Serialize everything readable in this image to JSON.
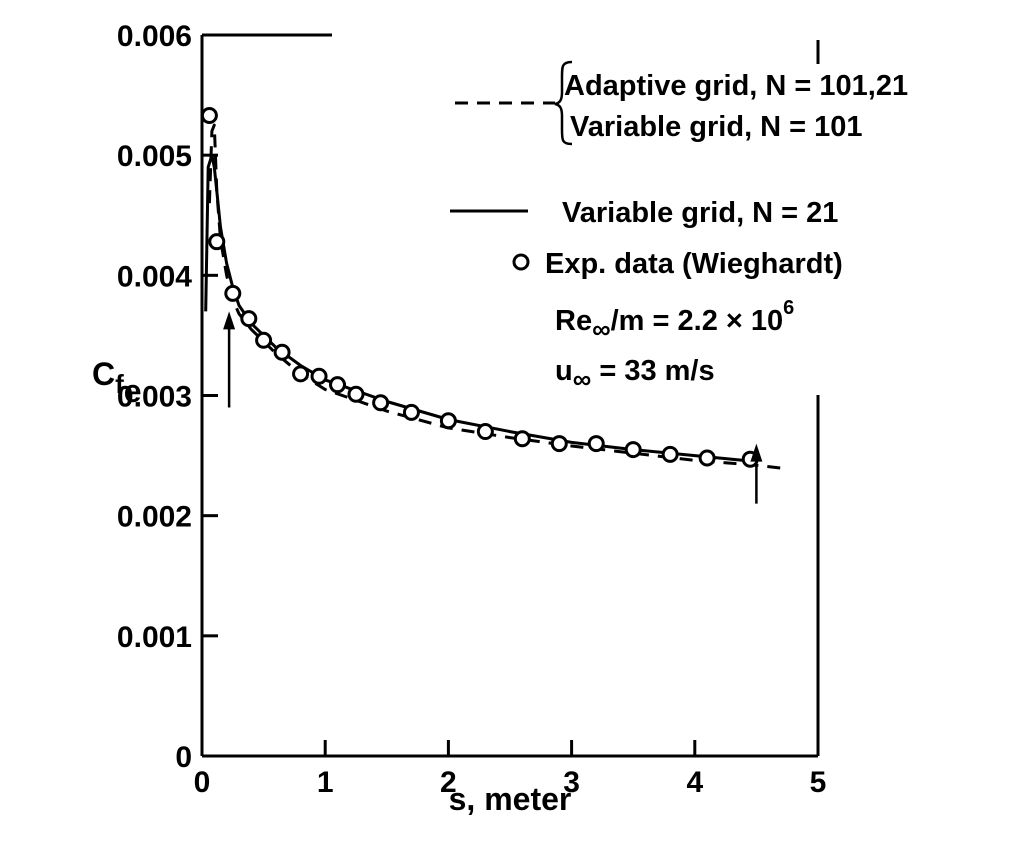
{
  "chart_data": {
    "type": "line",
    "title": "",
    "xlabel": "s, meter",
    "ylabel": {
      "main": "C",
      "sub1": "f",
      "sub2": "e"
    },
    "xlim": [
      0,
      5
    ],
    "ylim": [
      0,
      0.006
    ],
    "x_ticks": [
      "0",
      "1",
      "2",
      "3",
      "4",
      "5"
    ],
    "y_ticks": [
      "0",
      "0.001",
      "0.002",
      "0.003",
      "0.004",
      "0.005",
      "0.006"
    ],
    "grid": false,
    "legend_position": "top-right",
    "legend": {
      "dashed_1": "Adaptive grid, N = 101,21",
      "dashed_2": "Variable grid, N = 101",
      "solid": "Variable grid, N = 21",
      "markers": "Exp. data (Wieghardt)",
      "reynolds_prefix": "Re",
      "reynolds_sub": "∞",
      "reynolds_suffix": "/m = 2.2 × 10",
      "reynolds_exp": "6",
      "velocity_prefix": "u",
      "velocity_sub": "∞",
      "velocity_suffix": " = 33 m/s"
    },
    "series": [
      {
        "style": "dashed",
        "x": [
          0.06,
          0.08,
          0.1,
          0.12,
          0.15,
          0.2,
          0.25,
          0.3,
          0.4,
          0.5,
          0.6,
          0.8,
          1.0,
          1.5,
          2.0,
          2.5,
          3.0,
          3.5,
          4.0,
          4.5,
          4.75
        ],
        "y": [
          0.0046,
          0.0052,
          0.00525,
          0.0047,
          0.0043,
          0.004,
          0.0038,
          0.00368,
          0.00355,
          0.00345,
          0.00335,
          0.00318,
          0.00305,
          0.00287,
          0.00273,
          0.00265,
          0.00258,
          0.00252,
          0.00246,
          0.00242,
          0.00239
        ]
      },
      {
        "style": "solid",
        "x": [
          0.03,
          0.05,
          0.08,
          0.1,
          0.12,
          0.15,
          0.2,
          0.25,
          0.3,
          0.4,
          0.5,
          0.6,
          0.8,
          1.0,
          1.5,
          2.0,
          2.5,
          3.0,
          3.5,
          4.0,
          4.5
        ],
        "y": [
          0.0037,
          0.0049,
          0.005,
          0.0049,
          0.0047,
          0.0044,
          0.0041,
          0.0039,
          0.00375,
          0.0036,
          0.0035,
          0.0034,
          0.00325,
          0.00313,
          0.00295,
          0.0028,
          0.0027,
          0.00261,
          0.00255,
          0.0025,
          0.00245
        ]
      },
      {
        "style": "markers",
        "x": [
          0.06,
          0.12,
          0.25,
          0.38,
          0.5,
          0.65,
          0.8,
          0.95,
          1.1,
          1.25,
          1.45,
          1.7,
          2.0,
          2.3,
          2.6,
          2.9,
          3.2,
          3.5,
          3.8,
          4.1,
          4.45
        ],
        "y": [
          0.00533,
          0.00428,
          0.00385,
          0.00364,
          0.00346,
          0.00336,
          0.00318,
          0.00316,
          0.00309,
          0.00301,
          0.00294,
          0.00286,
          0.00279,
          0.0027,
          0.00264,
          0.0026,
          0.0026,
          0.00255,
          0.00251,
          0.00248,
          0.00247
        ]
      }
    ],
    "annotations": [
      {
        "type": "arrow-up",
        "x": 0.22,
        "y_from": 0.0029,
        "y_to": 0.0037
      },
      {
        "type": "arrow-up",
        "x": 4.5,
        "y_from": 0.0021,
        "y_to": 0.0026
      }
    ]
  }
}
